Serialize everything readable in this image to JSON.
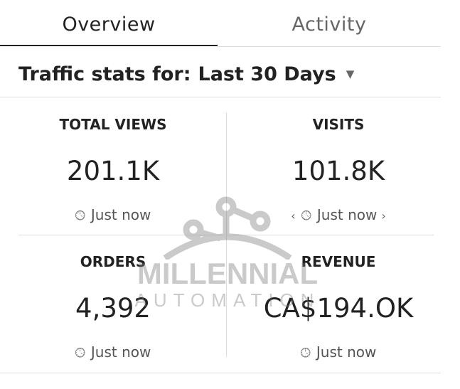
{
  "tabs": [
    {
      "label": "Overview",
      "active": true
    },
    {
      "label": "Activity",
      "active": false
    }
  ],
  "traffic": {
    "prefix": "Traffic stats for:",
    "range": "Last 30 Days",
    "dropdown_icon": "caret-down-icon"
  },
  "stats": [
    {
      "label": "TOTAL VIEWS",
      "value": "201.1K",
      "updated": "Just now"
    },
    {
      "label": "VISITS",
      "value": "101.8K",
      "updated": "Just now"
    },
    {
      "label": "ORDERS",
      "value": "4,392",
      "updated": "Just now"
    },
    {
      "label": "REVENUE",
      "value": "CA$194.OK",
      "updated": "Just now"
    }
  ],
  "icons": {
    "clock": "clock-icon",
    "prev": "chevron-left-icon",
    "next": "chevron-right-icon"
  },
  "watermark": {
    "line1": "MILLENNIAL",
    "line2": "AUTOMATION"
  },
  "colors": {
    "text": "#222222",
    "muted": "#666666",
    "divider": "#dddddd",
    "watermark": "#7d7d7d"
  }
}
